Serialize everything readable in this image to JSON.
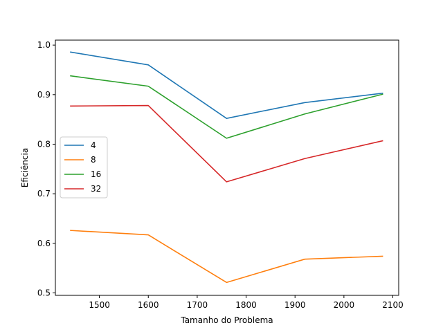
{
  "chart_data": {
    "type": "line",
    "xlabel": "Tamanho do Problema",
    "ylabel": "Eficiência",
    "xlim": [
      1410,
      2112
    ],
    "ylim": [
      0.495,
      1.01
    ],
    "xticks": [
      1500,
      1600,
      1700,
      1800,
      1900,
      2000,
      2100
    ],
    "yticks": [
      0.5,
      0.6,
      0.7,
      0.8,
      0.9,
      1.0
    ],
    "xtick_labels": [
      "1500",
      "1600",
      "1700",
      "1800",
      "1900",
      "2000",
      "2100"
    ],
    "ytick_labels": [
      "0.5",
      "0.6",
      "0.7",
      "0.8",
      "0.9",
      "1.0"
    ],
    "x": [
      1440,
      1600,
      1760,
      1920,
      2080
    ],
    "grid": false,
    "legend_position": "center-left",
    "series": [
      {
        "name": "4",
        "color": "#1f77b4",
        "values": [
          0.986,
          0.96,
          0.852,
          0.884,
          0.903
        ]
      },
      {
        "name": "8",
        "color": "#ff7f0e",
        "values": [
          0.626,
          0.617,
          0.521,
          0.568,
          0.574
        ]
      },
      {
        "name": "16",
        "color": "#2ca02c",
        "values": [
          0.938,
          0.917,
          0.812,
          0.861,
          0.901
        ]
      },
      {
        "name": "32",
        "color": "#d62728",
        "values": [
          0.877,
          0.878,
          0.724,
          0.771,
          0.807
        ]
      }
    ]
  }
}
